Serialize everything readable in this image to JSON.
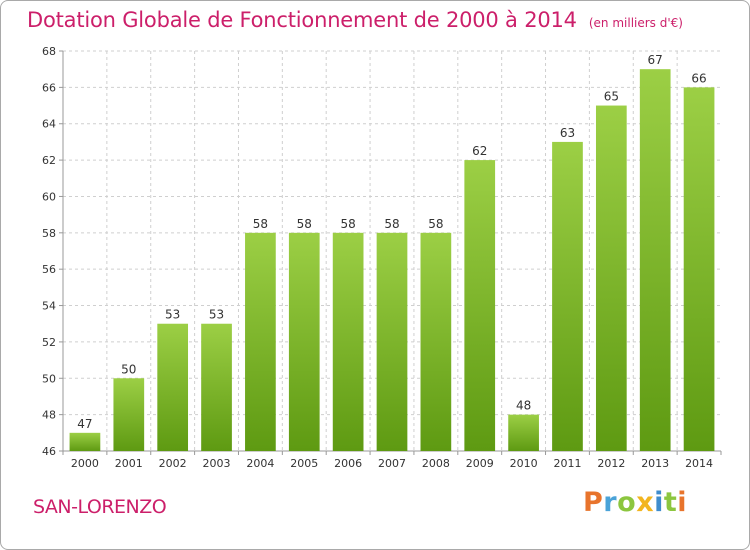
{
  "header": {
    "title": "Dotation Globale de Fonctionnement de 2000 à 2014",
    "unit": "(en milliers d'€)"
  },
  "footer": {
    "commune": "SAN-LORENZO",
    "brand": "Proxiti"
  },
  "colors": {
    "title": "#cc1f6a",
    "bar_light": "#9ccf45",
    "bar_dark": "#5e9a12",
    "grid": "#cfcfcf"
  },
  "chart_data": {
    "type": "bar",
    "title": "Dotation Globale de Fonctionnement de 2000 à 2014",
    "subtitle": "(en milliers d'€)",
    "categories": [
      "2000",
      "2001",
      "2002",
      "2003",
      "2004",
      "2005",
      "2006",
      "2007",
      "2008",
      "2009",
      "2010",
      "2011",
      "2012",
      "2013",
      "2014"
    ],
    "values": [
      47,
      50,
      53,
      53,
      58,
      58,
      58,
      58,
      58,
      62,
      48,
      63,
      65,
      67,
      66
    ],
    "ylim": [
      46,
      68
    ],
    "yticks": [
      46,
      48,
      50,
      52,
      54,
      56,
      58,
      60,
      62,
      64,
      66,
      68
    ],
    "grid": true,
    "data_labels": true
  }
}
